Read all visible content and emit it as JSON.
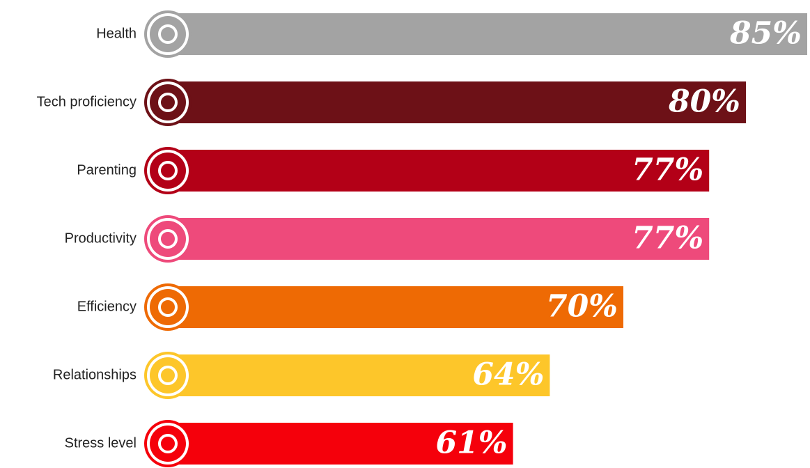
{
  "chart_data": {
    "type": "bar",
    "orientation": "horizontal",
    "categories": [
      "Health",
      "Tech proficiency",
      "Parenting",
      "Productivity",
      "Efficiency",
      "Relationships",
      "Stress level"
    ],
    "values": [
      85,
      80,
      77,
      77,
      70,
      64,
      61
    ],
    "value_labels": [
      "85%",
      "80%",
      "77%",
      "77%",
      "70%",
      "64%",
      "61%"
    ],
    "colors": [
      "#a3a3a3",
      "#6d1117",
      "#b30017",
      "#ee4a7b",
      "#ee6a04",
      "#fdc62a",
      "#f5000b"
    ]
  }
}
